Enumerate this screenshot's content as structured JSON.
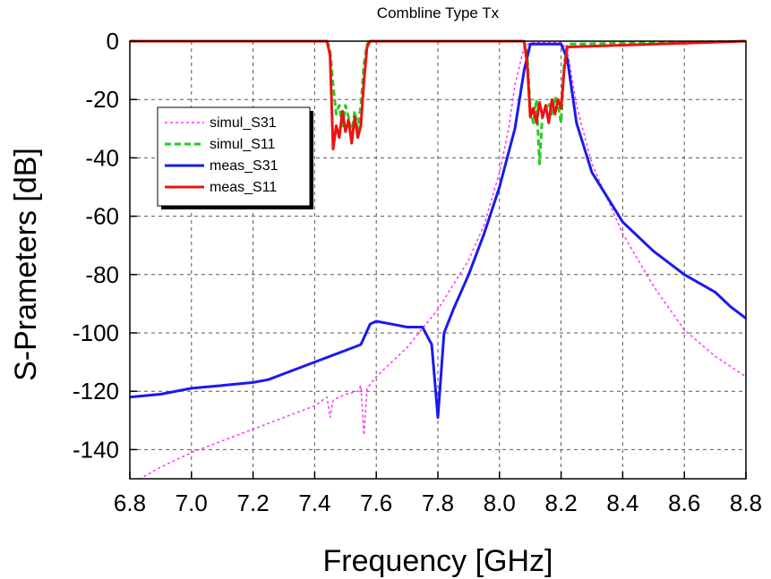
{
  "chart_data": {
    "type": "line",
    "title": "Combline Type Tx",
    "xlabel": "Frequency [GHz]",
    "ylabel": "S-Prameters [dB]",
    "xlim": [
      6.8,
      8.8
    ],
    "ylim": [
      -150,
      0
    ],
    "xticks": [
      6.8,
      7.0,
      7.2,
      7.4,
      7.6,
      7.8,
      8.0,
      8.2,
      8.4,
      8.6,
      8.8
    ],
    "xtick_labels": [
      "6.8",
      "7.0",
      "7.2",
      "7.4",
      "7.6",
      "7.8",
      "8.0",
      "8.2",
      "8.4",
      "8.6",
      "8.8"
    ],
    "yticks": [
      0,
      -20,
      -40,
      -60,
      -80,
      -100,
      -120,
      -140
    ],
    "ytick_labels": [
      "0",
      "-20",
      "-40",
      "-60",
      "-80",
      "-100",
      "-120",
      "-140"
    ],
    "grid": true,
    "legend_position": "upper-left",
    "series": [
      {
        "name": "simul_S31",
        "color": "#ff33ff",
        "style": "dotted",
        "width": 1.5,
        "x": [
          6.8,
          6.9,
          7.0,
          7.1,
          7.2,
          7.3,
          7.4,
          7.44,
          7.45,
          7.46,
          7.5,
          7.54,
          7.55,
          7.56,
          7.57,
          7.6,
          7.7,
          7.8,
          7.9,
          7.95,
          8.0,
          8.03,
          8.05,
          8.08,
          8.1,
          8.15,
          8.2,
          8.22,
          8.25,
          8.3,
          8.4,
          8.5,
          8.6,
          8.7,
          8.8
        ],
        "y": [
          -152,
          -146,
          -141,
          -137,
          -133,
          -129,
          -125,
          -122,
          -129,
          -123,
          -121,
          -120,
          -118,
          -135,
          -119,
          -115,
          -105,
          -92,
          -75,
          -63,
          -45,
          -30,
          -15,
          -2,
          -0.5,
          -0.5,
          -0.5,
          -3,
          -22,
          -42,
          -66,
          -84,
          -99,
          -108,
          -115
        ]
      },
      {
        "name": "simul_S11",
        "color": "#22cc22",
        "style": "dashed",
        "width": 3,
        "x": [
          6.8,
          7.44,
          7.45,
          7.46,
          7.47,
          7.48,
          7.49,
          7.5,
          7.51,
          7.52,
          7.53,
          7.54,
          7.55,
          7.56,
          7.57,
          7.58,
          8.08,
          8.09,
          8.1,
          8.11,
          8.12,
          8.13,
          8.14,
          8.15,
          8.16,
          8.17,
          8.18,
          8.19,
          8.2,
          8.21,
          8.22,
          8.8
        ],
        "y": [
          0,
          0,
          -3,
          -15,
          -25,
          -22,
          -30,
          -22,
          -26,
          -32,
          -24,
          -30,
          -22,
          -8,
          -1,
          0,
          0,
          -5,
          -23,
          -28,
          -20,
          -42,
          -24,
          -23,
          -21,
          -25,
          -19,
          -22,
          -28,
          -8,
          -1,
          0
        ]
      },
      {
        "name": "meas_S31",
        "color": "#1a1aee",
        "style": "solid",
        "width": 3,
        "x": [
          6.8,
          6.9,
          7.0,
          7.1,
          7.2,
          7.25,
          7.3,
          7.4,
          7.5,
          7.55,
          7.58,
          7.6,
          7.65,
          7.7,
          7.75,
          7.78,
          7.8,
          7.82,
          7.85,
          7.9,
          7.95,
          8.0,
          8.05,
          8.08,
          8.1,
          8.15,
          8.2,
          8.22,
          8.25,
          8.3,
          8.4,
          8.5,
          8.6,
          8.7,
          8.75,
          8.8
        ],
        "y": [
          -122,
          -121,
          -119,
          -118,
          -117,
          -116,
          -114,
          -110,
          -106,
          -104,
          -97,
          -96,
          -97,
          -98,
          -98,
          -104,
          -129,
          -100,
          -92,
          -80,
          -66,
          -50,
          -30,
          -10,
          -1,
          -1,
          -1,
          -6,
          -28,
          -45,
          -62,
          -72,
          -80,
          -86,
          -91,
          -95
        ]
      },
      {
        "name": "meas_S11",
        "color": "#ee1111",
        "style": "solid",
        "width": 3,
        "x": [
          6.8,
          7.44,
          7.45,
          7.46,
          7.47,
          7.48,
          7.49,
          7.5,
          7.51,
          7.52,
          7.53,
          7.54,
          7.55,
          7.56,
          7.57,
          7.58,
          8.08,
          8.09,
          8.1,
          8.11,
          8.12,
          8.13,
          8.14,
          8.15,
          8.16,
          8.17,
          8.18,
          8.19,
          8.2,
          8.21,
          8.22,
          8.8
        ],
        "y": [
          0,
          0,
          -5,
          -37,
          -29,
          -33,
          -24,
          -31,
          -27,
          -35,
          -26,
          -33,
          -29,
          -14,
          -2,
          0,
          0,
          -8,
          -26,
          -23,
          -28,
          -21,
          -26,
          -22,
          -28,
          -20,
          -25,
          -20,
          -23,
          -10,
          -2,
          0
        ]
      }
    ]
  }
}
